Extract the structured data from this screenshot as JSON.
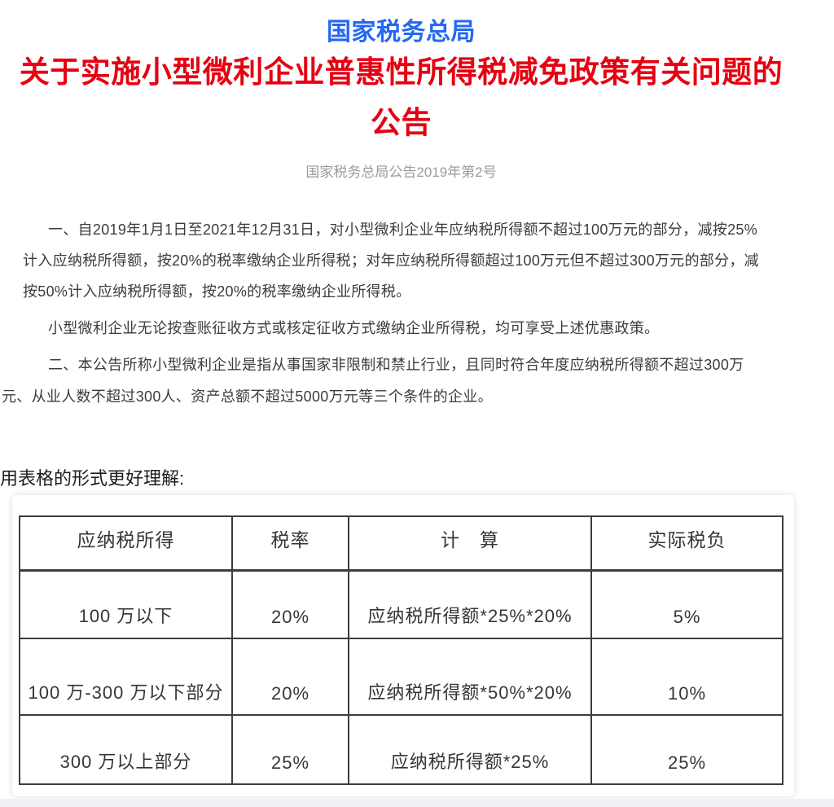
{
  "header": {
    "agency": "国家税务总局",
    "title_line1": "关于实施小型微利企业普惠性所得税减免政策有关问题的",
    "title_line2": "公告",
    "doc_number": "国家税务总局公告2019年第2号"
  },
  "body": {
    "lines": [
      "一、自2019年1月1日至2021年12月31日，对小型微利企业年应纳税所得额不超过100万元的部分，减按25%",
      "计入应纳税所得额，按20%的税率缴纳企业所得税；对年应纳税所得额超过100万元但不超过300万元的部分，减",
      "按50%计入应纳税所得额，按20%的税率缴纳企业所得税。",
      "小型微利企业无论按查账征收方式或核定征收方式缴纳企业所得税，均可享受上述优惠政策。",
      "二、本公告所称小型微利企业是指从事国家非限制和禁止行业，且同时符合年度应纳税所得额不超过300万",
      "元、从业人数不超过300人、资产总额不超过5000万元等三个条件的企业。"
    ]
  },
  "intro": {
    "label": "用表格的形式更好理解:"
  },
  "table": {
    "headers": [
      "应纳税所得",
      "税率",
      "计　算",
      "实际税负"
    ],
    "rows": [
      [
        "100 万以下",
        "20%",
        "应纳税所得额*25%*20%",
        "5%"
      ],
      [
        "100 万-300 万以下部分",
        "20%",
        "应纳税所得额*50%*20%",
        "10%"
      ],
      [
        "300 万以上部分",
        "25%",
        "应纳税所得额*25%",
        "25%"
      ]
    ]
  },
  "colors": {
    "agency_blue": "#2468f2",
    "title_red": "#e60012",
    "doc_number_gray": "#9b9b9b",
    "body_text": "#3c3c3c",
    "table_border": "#3d3d3d",
    "footer_strip": "#eff1f4"
  }
}
